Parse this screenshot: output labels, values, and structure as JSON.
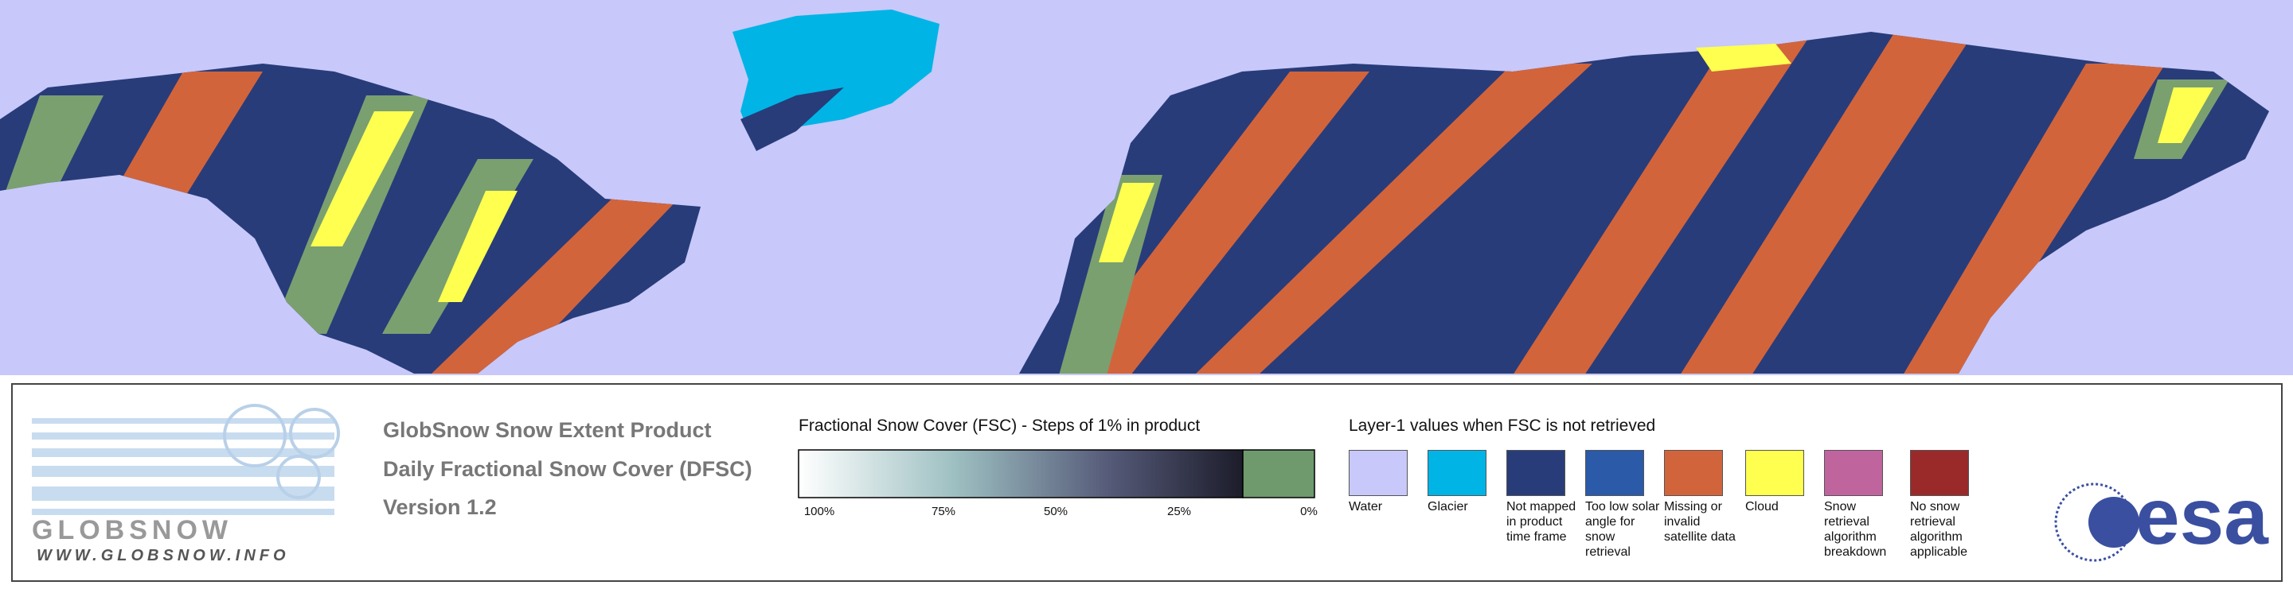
{
  "header": {
    "product": "GlobSnow Snow Extent Product",
    "subtitle": "Daily Fractional Snow Cover (DFSC)",
    "version": "Version 1.2"
  },
  "logo": {
    "name": "GLOBSNOW",
    "url": "WWW.GLOBSNOW.INFO"
  },
  "fsc_scale": {
    "title": "Fractional Snow Cover (FSC) - Steps of 1% in product",
    "ticks": [
      "100%",
      "75%",
      "50%",
      "25%",
      "0%"
    ]
  },
  "layer1": {
    "title": "Layer-1 values when FSC is not retrieved",
    "items": [
      {
        "label": "Water",
        "color": "#c8c8fa"
      },
      {
        "label": "Glacier",
        "color": "#00b4e6"
      },
      {
        "label": "Not mapped in product time frame",
        "color": "#283c7a"
      },
      {
        "label": "Too low solar angle for snow retrieval",
        "color": "#2a5aa8"
      },
      {
        "label": "Missing or invalid satellite data",
        "color": "#d2643c"
      },
      {
        "label": "Cloud",
        "color": "#ffff50"
      },
      {
        "label": "Snow retrieval algorithm breakdown",
        "color": "#c0649e"
      },
      {
        "label": "No snow retrieval algorithm applicable",
        "color": "#9a2a2a"
      }
    ]
  },
  "esa": "esa"
}
